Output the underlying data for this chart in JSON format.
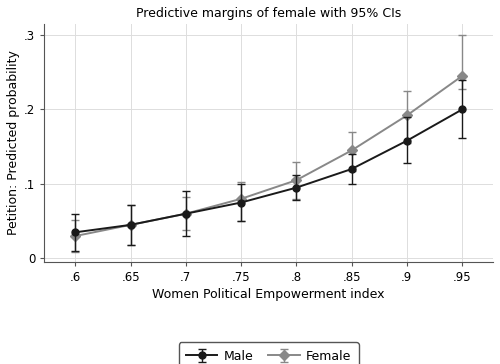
{
  "title": "Predictive margins of female with 95% CIs",
  "xlabel": "Women Political Empowerment index",
  "ylabel": "Petition: Predicted probability",
  "x": [
    0.6,
    0.65,
    0.7,
    0.75,
    0.8,
    0.85,
    0.9,
    0.95
  ],
  "male_y": [
    0.035,
    0.045,
    0.06,
    0.075,
    0.095,
    0.12,
    0.158,
    0.2
  ],
  "male_lo": [
    0.01,
    0.018,
    0.03,
    0.05,
    0.078,
    0.1,
    0.128,
    0.162
  ],
  "male_hi": [
    0.06,
    0.072,
    0.09,
    0.1,
    0.112,
    0.14,
    0.19,
    0.24
  ],
  "female_y": [
    0.03,
    0.045,
    0.06,
    0.08,
    0.105,
    0.145,
    0.192,
    0.245
  ],
  "female_lo": [
    0.008,
    0.018,
    0.038,
    0.05,
    0.08,
    0.118,
    0.155,
    0.228
  ],
  "female_hi": [
    0.052,
    0.072,
    0.082,
    0.102,
    0.13,
    0.17,
    0.225,
    0.3
  ],
  "male_color": "#1a1a1a",
  "female_color": "#888888",
  "male_marker": "o",
  "female_marker": "D",
  "ylim": [
    -0.005,
    0.315
  ],
  "yticks": [
    0.0,
    0.1,
    0.2,
    0.3
  ],
  "ytick_labels": [
    "0",
    ".1",
    ".2",
    ".3"
  ],
  "xtick_labels": [
    ".6",
    ".65",
    ".7",
    ".75",
    ".8",
    ".85",
    ".9",
    ".95"
  ],
  "legend_labels": [
    "Male",
    "Female"
  ],
  "bg_color": "#ffffff",
  "linewidth": 1.4,
  "markersize": 5,
  "capsize": 3,
  "elinewidth": 1.0
}
